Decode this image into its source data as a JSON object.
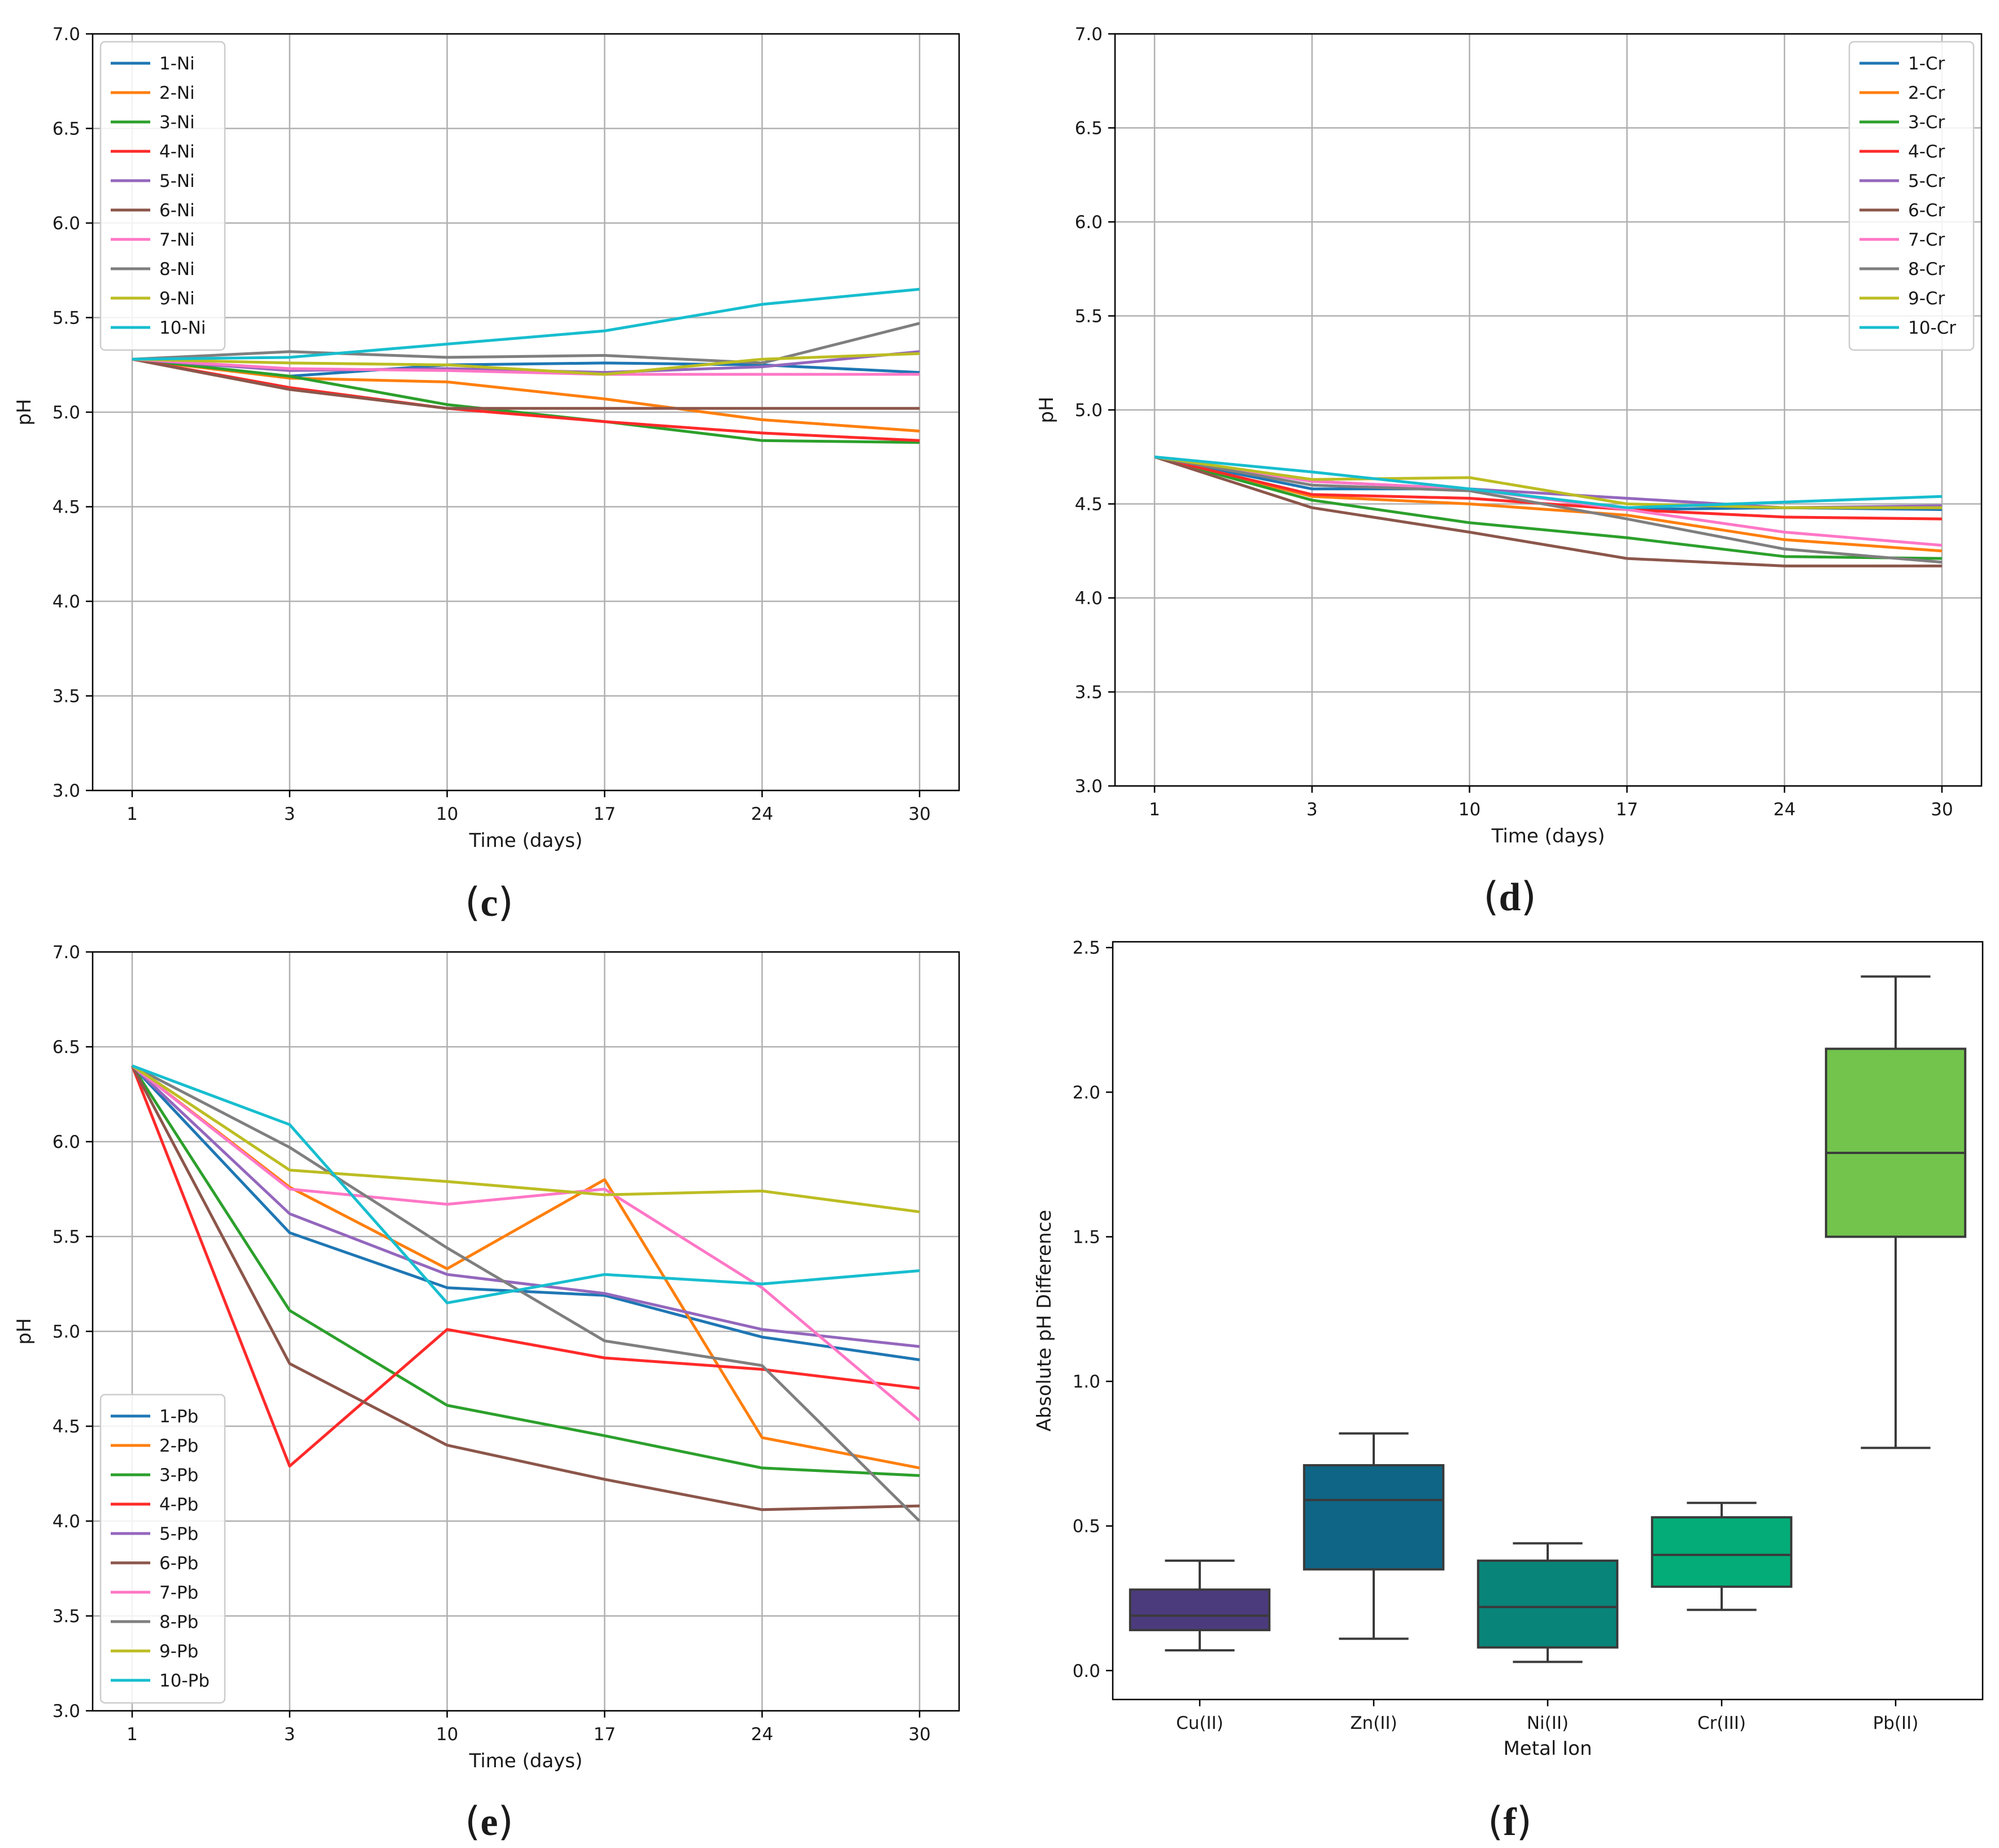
{
  "chart_data": [
    {
      "id": "c",
      "caption": {
        "open": "(",
        "letter": "c",
        "close": ")"
      },
      "type": "line",
      "x": [
        "1",
        "3",
        "10",
        "17",
        "24",
        "30"
      ],
      "xlabel": "Time (days)",
      "ylabel": "pH",
      "ylim": [
        3.0,
        7.0
      ],
      "yticks": [
        "3.0",
        "3.5",
        "4.0",
        "4.5",
        "5.0",
        "5.5",
        "6.0",
        "6.5",
        "7.0"
      ],
      "grid": true,
      "legend_position": "top-left",
      "series": [
        {
          "name": "1-Ni",
          "color": "#1f77b4",
          "values": [
            5.28,
            5.19,
            5.25,
            5.26,
            5.25,
            5.21
          ]
        },
        {
          "name": "2-Ni",
          "color": "#ff7f0e",
          "values": [
            5.28,
            5.18,
            5.16,
            5.07,
            4.96,
            4.9
          ]
        },
        {
          "name": "3-Ni",
          "color": "#2ca02c",
          "values": [
            5.28,
            5.19,
            5.04,
            4.95,
            4.85,
            4.84
          ]
        },
        {
          "name": "4-Ni",
          "color": "#ff2a2a",
          "values": [
            5.28,
            5.13,
            5.02,
            4.95,
            4.89,
            4.85
          ]
        },
        {
          "name": "5-Ni",
          "color": "#9467bd",
          "values": [
            5.28,
            5.22,
            5.23,
            5.21,
            5.24,
            5.32
          ]
        },
        {
          "name": "6-Ni",
          "color": "#8c564b",
          "values": [
            5.28,
            5.12,
            5.02,
            5.02,
            5.02,
            5.02
          ]
        },
        {
          "name": "7-Ni",
          "color": "#ff77c6",
          "values": [
            5.28,
            5.23,
            5.22,
            5.2,
            5.2,
            5.2
          ]
        },
        {
          "name": "8-Ni",
          "color": "#7f7f7f",
          "values": [
            5.28,
            5.32,
            5.29,
            5.3,
            5.26,
            5.47
          ]
        },
        {
          "name": "9-Ni",
          "color": "#bcbd22",
          "values": [
            5.28,
            5.26,
            5.25,
            5.2,
            5.28,
            5.31
          ]
        },
        {
          "name": "10-Ni",
          "color": "#17becf",
          "values": [
            5.28,
            5.29,
            5.36,
            5.43,
            5.57,
            5.65
          ]
        }
      ]
    },
    {
      "id": "d",
      "caption": {
        "open": "(",
        "letter": "d",
        "close": ")"
      },
      "type": "line",
      "x": [
        "1",
        "3",
        "10",
        "17",
        "24",
        "30"
      ],
      "xlabel": "Time (days)",
      "ylabel": "pH",
      "ylim": [
        3.0,
        7.0
      ],
      "yticks": [
        "3.0",
        "3.5",
        "4.0",
        "4.5",
        "5.0",
        "5.5",
        "6.0",
        "6.5",
        "7.0"
      ],
      "grid": true,
      "legend_position": "top-right",
      "series": [
        {
          "name": "1-Cr",
          "color": "#1f77b4",
          "values": [
            4.75,
            4.58,
            4.58,
            4.47,
            4.48,
            4.47
          ]
        },
        {
          "name": "2-Cr",
          "color": "#ff7f0e",
          "values": [
            4.75,
            4.54,
            4.5,
            4.44,
            4.31,
            4.25
          ]
        },
        {
          "name": "3-Cr",
          "color": "#2ca02c",
          "values": [
            4.75,
            4.52,
            4.4,
            4.32,
            4.22,
            4.21
          ]
        },
        {
          "name": "4-Cr",
          "color": "#ff2a2a",
          "values": [
            4.75,
            4.55,
            4.53,
            4.47,
            4.43,
            4.42
          ]
        },
        {
          "name": "5-Cr",
          "color": "#9467bd",
          "values": [
            4.75,
            4.62,
            4.58,
            4.53,
            4.48,
            4.49
          ]
        },
        {
          "name": "6-Cr",
          "color": "#8c564b",
          "values": [
            4.75,
            4.48,
            4.35,
            4.21,
            4.17,
            4.17
          ]
        },
        {
          "name": "7-Cr",
          "color": "#ff77c6",
          "values": [
            4.75,
            4.62,
            4.58,
            4.47,
            4.35,
            4.28
          ]
        },
        {
          "name": "8-Cr",
          "color": "#7f7f7f",
          "values": [
            4.75,
            4.6,
            4.57,
            4.42,
            4.26,
            4.19
          ]
        },
        {
          "name": "9-Cr",
          "color": "#bcbd22",
          "values": [
            4.75,
            4.63,
            4.64,
            4.5,
            4.48,
            4.48
          ]
        },
        {
          "name": "10-Cr",
          "color": "#17becf",
          "values": [
            4.75,
            4.67,
            4.58,
            4.48,
            4.51,
            4.54
          ]
        }
      ]
    },
    {
      "id": "e",
      "caption": {
        "open": "(",
        "letter": "e",
        "close": ")"
      },
      "type": "line",
      "x": [
        "1",
        "3",
        "10",
        "17",
        "24",
        "30"
      ],
      "xlabel": "Time (days)",
      "ylabel": "pH",
      "ylim": [
        3.0,
        7.0
      ],
      "yticks": [
        "3.0",
        "3.5",
        "4.0",
        "4.5",
        "5.0",
        "5.5",
        "6.0",
        "6.5",
        "7.0"
      ],
      "grid": true,
      "legend_position": "bottom-left",
      "series": [
        {
          "name": "1-Pb",
          "color": "#1f77b4",
          "values": [
            6.4,
            5.52,
            5.23,
            5.19,
            4.97,
            4.85
          ]
        },
        {
          "name": "2-Pb",
          "color": "#ff7f0e",
          "values": [
            6.4,
            5.76,
            5.33,
            5.8,
            4.44,
            4.28
          ]
        },
        {
          "name": "3-Pb",
          "color": "#2ca02c",
          "values": [
            6.4,
            5.11,
            4.61,
            4.45,
            4.28,
            4.24
          ]
        },
        {
          "name": "4-Pb",
          "color": "#ff2a2a",
          "values": [
            6.4,
            4.29,
            5.01,
            4.86,
            4.8,
            4.7
          ]
        },
        {
          "name": "5-Pb",
          "color": "#9467bd",
          "values": [
            6.4,
            5.62,
            5.3,
            5.2,
            5.01,
            4.92
          ]
        },
        {
          "name": "6-Pb",
          "color": "#8c564b",
          "values": [
            6.4,
            4.83,
            4.4,
            4.22,
            4.06,
            4.08
          ]
        },
        {
          "name": "7-Pb",
          "color": "#ff77c6",
          "values": [
            6.4,
            5.75,
            5.67,
            5.75,
            5.23,
            4.53
          ]
        },
        {
          "name": "8-Pb",
          "color": "#7f7f7f",
          "values": [
            6.4,
            5.97,
            5.44,
            4.95,
            4.82,
            4.0
          ]
        },
        {
          "name": "9-Pb",
          "color": "#bcbd22",
          "values": [
            6.4,
            5.85,
            5.79,
            5.72,
            5.74,
            5.63
          ]
        },
        {
          "name": "10-Pb",
          "color": "#17becf",
          "values": [
            6.4,
            6.09,
            5.15,
            5.3,
            5.25,
            5.32
          ]
        }
      ]
    },
    {
      "id": "f",
      "caption": {
        "open": "(",
        "letter": "f",
        "close": ")"
      },
      "type": "box",
      "categories": [
        "Cu(II)",
        "Zn(II)",
        "Ni(II)",
        "Cr(III)",
        "Pb(II)"
      ],
      "xlabel": "Metal Ion",
      "ylabel": "Absolute pH Difference",
      "ylim": [
        -0.1,
        2.52
      ],
      "yticks": [
        "0.0",
        "0.5",
        "1.0",
        "1.5",
        "2.0",
        "2.5"
      ],
      "grid": false,
      "boxes": [
        {
          "name": "Cu(II)",
          "color": "#4b3b7d",
          "min": 0.07,
          "q1": 0.14,
          "median": 0.19,
          "q3": 0.28,
          "max": 0.38
        },
        {
          "name": "Zn(II)",
          "color": "#0e6585",
          "min": 0.11,
          "q1": 0.35,
          "median": 0.59,
          "q3": 0.71,
          "max": 0.82
        },
        {
          "name": "Ni(II)",
          "color": "#098479",
          "min": 0.03,
          "q1": 0.08,
          "median": 0.22,
          "q3": 0.38,
          "max": 0.44
        },
        {
          "name": "Cr(III)",
          "color": "#04ac77",
          "min": 0.21,
          "q1": 0.29,
          "median": 0.4,
          "q3": 0.53,
          "max": 0.58
        },
        {
          "name": "Pb(II)",
          "color": "#72c44d",
          "min": 0.77,
          "q1": 1.5,
          "median": 1.79,
          "q3": 2.15,
          "max": 2.4
        }
      ]
    }
  ]
}
